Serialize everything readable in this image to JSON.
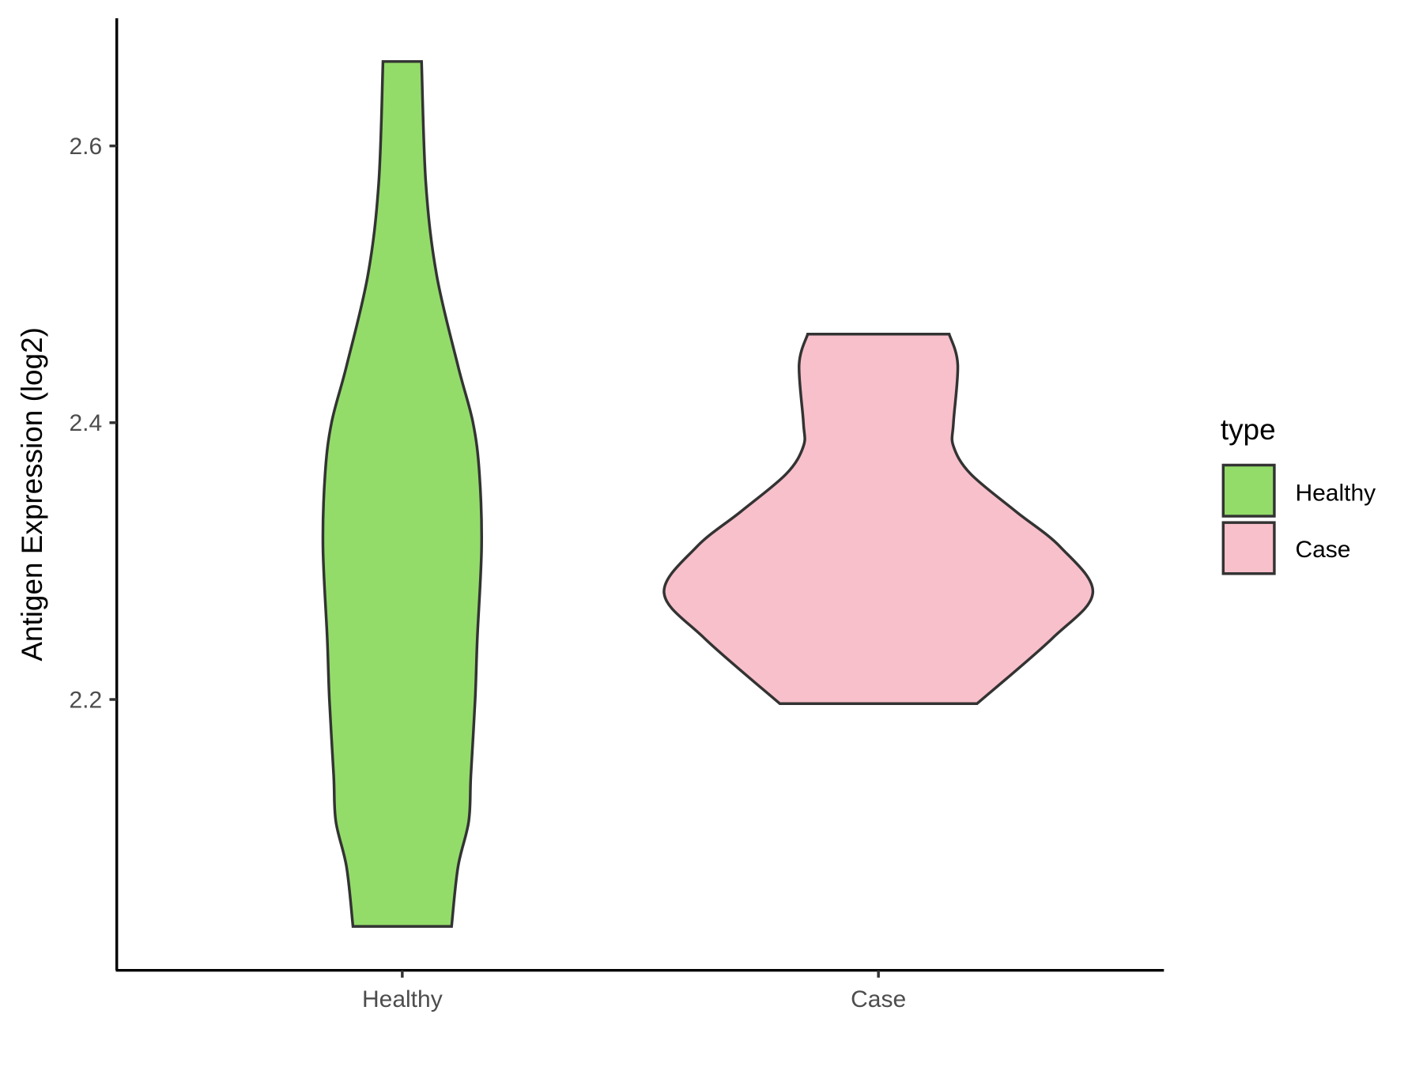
{
  "chart_data": {
    "type": "violin",
    "title": "",
    "xlabel": "",
    "ylabel": "Antigen Expression (log2)",
    "ylim": [
      2.005,
      2.692
    ],
    "yticks": [
      2.2,
      2.4,
      2.6
    ],
    "ytick_labels": [
      "2.2",
      "2.4",
      "2.6"
    ],
    "categories": [
      "Healthy",
      "Case"
    ],
    "grid": false,
    "legend": {
      "title": "type",
      "placement": "right",
      "entries": [
        "Healthy",
        "Case"
      ]
    },
    "series": [
      {
        "name": "Healthy",
        "color": "#93DC6A",
        "min": 2.036,
        "max": 2.661,
        "profile": [
          [
            2.661,
            0.09
          ],
          [
            2.573,
            0.11
          ],
          [
            2.507,
            0.16
          ],
          [
            2.441,
            0.26
          ],
          [
            2.4,
            0.33
          ],
          [
            2.363,
            0.36
          ],
          [
            2.31,
            0.37
          ],
          [
            2.244,
            0.35
          ],
          [
            2.2,
            0.34
          ],
          [
            2.145,
            0.32
          ],
          [
            2.112,
            0.31
          ],
          [
            2.079,
            0.26
          ],
          [
            2.036,
            0.23
          ]
        ]
      },
      {
        "name": "Case",
        "color": "#F8C0CB",
        "min": 2.197,
        "max": 2.464,
        "profile": [
          [
            2.464,
            0.33
          ],
          [
            2.442,
            0.37
          ],
          [
            2.4,
            0.35
          ],
          [
            2.383,
            0.35
          ],
          [
            2.363,
            0.43
          ],
          [
            2.336,
            0.64
          ],
          [
            2.31,
            0.85
          ],
          [
            2.277,
            1.0
          ],
          [
            2.244,
            0.81
          ],
          [
            2.197,
            0.46
          ]
        ]
      }
    ]
  }
}
